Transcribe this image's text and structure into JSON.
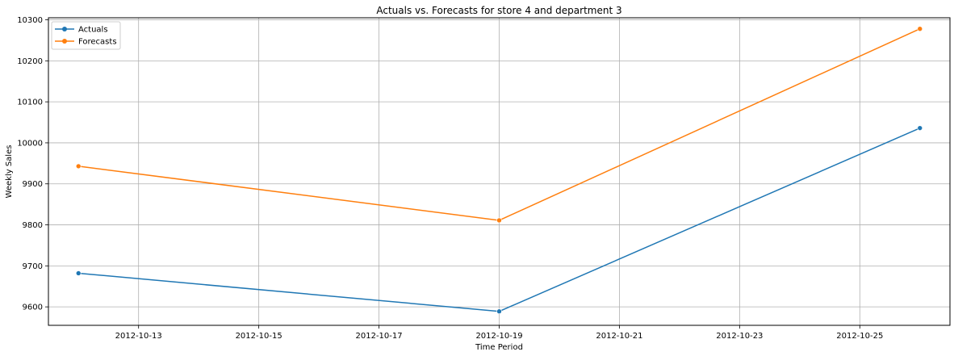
{
  "chart_data": {
    "type": "line",
    "title": "Actuals vs. Forecasts for store 4 and department 3",
    "xlabel": "Time Period",
    "ylabel": "Weekly Sales",
    "x": [
      "2012-10-12",
      "2012-10-19",
      "2012-10-26"
    ],
    "xlim": [
      "2012-10-11 12:00",
      "2012-10-26 12:00"
    ],
    "ylim": [
      9555,
      10305
    ],
    "xticks": [
      "2012-10-13",
      "2012-10-15",
      "2012-10-17",
      "2012-10-19",
      "2012-10-21",
      "2012-10-23",
      "2012-10-25"
    ],
    "yticks": [
      9600,
      9700,
      9800,
      9900,
      10000,
      10100,
      10200,
      10300
    ],
    "grid": true,
    "legend_position": "top-left",
    "series": [
      {
        "name": "Actuals",
        "color": "#1f77b4",
        "marker": "circle",
        "values": [
          9682,
          9589,
          10036
        ]
      },
      {
        "name": "Forecasts",
        "color": "#ff7f0e",
        "marker": "circle",
        "values": [
          9943,
          9811,
          10278
        ]
      }
    ]
  }
}
